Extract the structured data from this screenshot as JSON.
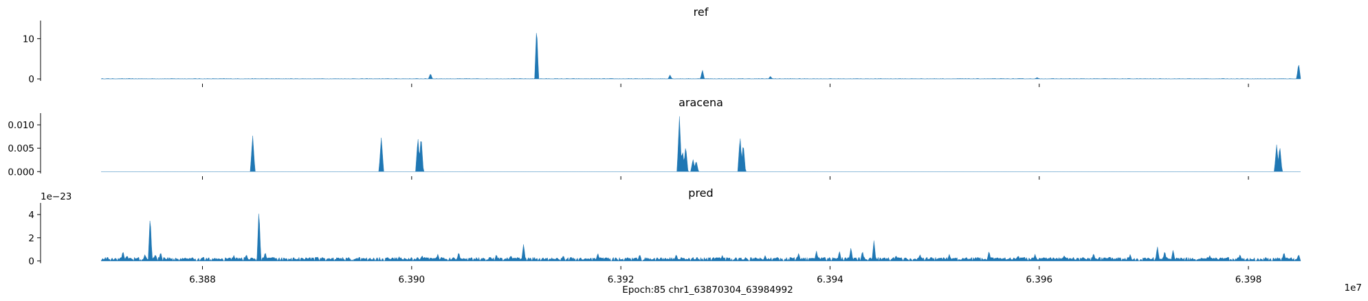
{
  "chart_data": [
    {
      "type": "area",
      "title": "ref",
      "color": "#1f77b4",
      "xlim": [
        63870304,
        63984992
      ],
      "ylim": [
        -0.5,
        14.5
      ],
      "yticks": [
        0,
        10
      ],
      "ytick_labels": [
        "0",
        "10"
      ],
      "peaks": [
        {
          "x": 63901800,
          "y": 1.4
        },
        {
          "x": 63911950,
          "y": 13.5
        },
        {
          "x": 63924700,
          "y": 1.0
        },
        {
          "x": 63927800,
          "y": 2.3
        },
        {
          "x": 63934300,
          "y": 0.7
        },
        {
          "x": 63959800,
          "y": 0.4
        },
        {
          "x": 63984800,
          "y": 4.0
        }
      ]
    },
    {
      "type": "area",
      "title": "aracena",
      "color": "#1f77b4",
      "xlim": [
        63870304,
        63984992
      ],
      "ylim": [
        -0.0004,
        0.0125
      ],
      "yticks": [
        0.0,
        0.005,
        0.01
      ],
      "ytick_labels": [
        "0.000",
        "0.005",
        "0.010"
      ],
      "peaks": [
        {
          "x": 63884800,
          "y": 0.0078
        },
        {
          "x": 63897100,
          "y": 0.0075
        },
        {
          "x": 63900600,
          "y": 0.0074
        },
        {
          "x": 63900900,
          "y": 0.0078
        },
        {
          "x": 63925600,
          "y": 0.0118
        },
        {
          "x": 63925900,
          "y": 0.0046
        },
        {
          "x": 63926200,
          "y": 0.0056
        },
        {
          "x": 63926900,
          "y": 0.0027
        },
        {
          "x": 63927200,
          "y": 0.0024
        },
        {
          "x": 63931400,
          "y": 0.0076
        },
        {
          "x": 63931700,
          "y": 0.0062
        },
        {
          "x": 63982700,
          "y": 0.0058
        },
        {
          "x": 63983000,
          "y": 0.0056
        }
      ]
    },
    {
      "type": "area",
      "title": "pred",
      "color": "#1f77b4",
      "xlim": [
        63870304,
        63984992
      ],
      "ylim": [
        -0.2,
        5.0
      ],
      "y_offset_label": "1e−23",
      "yticks": [
        0,
        2,
        4
      ],
      "ytick_labels": [
        "0",
        "2",
        "4"
      ],
      "baseline": 0.25,
      "peaks": [
        {
          "x": 63872400,
          "y": 0.9
        },
        {
          "x": 63872800,
          "y": 0.5
        },
        {
          "x": 63875000,
          "y": 4.0
        },
        {
          "x": 63874500,
          "y": 0.6
        },
        {
          "x": 63875500,
          "y": 0.6
        },
        {
          "x": 63876000,
          "y": 0.8
        },
        {
          "x": 63879000,
          "y": 0.3
        },
        {
          "x": 63883000,
          "y": 0.5
        },
        {
          "x": 63884200,
          "y": 0.6
        },
        {
          "x": 63885400,
          "y": 4.6
        },
        {
          "x": 63886000,
          "y": 0.8
        },
        {
          "x": 63891000,
          "y": 0.4
        },
        {
          "x": 63894000,
          "y": 0.3
        },
        {
          "x": 63898800,
          "y": 0.4
        },
        {
          "x": 63901000,
          "y": 0.5
        },
        {
          "x": 63902500,
          "y": 0.6
        },
        {
          "x": 63904500,
          "y": 0.8
        },
        {
          "x": 63908100,
          "y": 0.6
        },
        {
          "x": 63909500,
          "y": 0.5
        },
        {
          "x": 63910700,
          "y": 1.5
        },
        {
          "x": 63914500,
          "y": 0.5
        },
        {
          "x": 63917800,
          "y": 0.7
        },
        {
          "x": 63921800,
          "y": 0.6
        },
        {
          "x": 63925300,
          "y": 0.6
        },
        {
          "x": 63929700,
          "y": 0.5
        },
        {
          "x": 63933800,
          "y": 0.5
        },
        {
          "x": 63937000,
          "y": 0.7
        },
        {
          "x": 63938700,
          "y": 0.9
        },
        {
          "x": 63940900,
          "y": 0.9
        },
        {
          "x": 63942000,
          "y": 1.2
        },
        {
          "x": 63943100,
          "y": 0.9
        },
        {
          "x": 63944200,
          "y": 1.8
        },
        {
          "x": 63946300,
          "y": 0.5
        },
        {
          "x": 63948600,
          "y": 0.6
        },
        {
          "x": 63951400,
          "y": 0.6
        },
        {
          "x": 63955200,
          "y": 0.9
        },
        {
          "x": 63958000,
          "y": 0.5
        },
        {
          "x": 63959600,
          "y": 0.6
        },
        {
          "x": 63962400,
          "y": 0.5
        },
        {
          "x": 63965200,
          "y": 0.7
        },
        {
          "x": 63968700,
          "y": 0.6
        },
        {
          "x": 63971300,
          "y": 1.3
        },
        {
          "x": 63972000,
          "y": 0.9
        },
        {
          "x": 63972800,
          "y": 1.0
        },
        {
          "x": 63976300,
          "y": 0.5
        },
        {
          "x": 63979200,
          "y": 0.6
        },
        {
          "x": 63983400,
          "y": 0.8
        },
        {
          "x": 63984800,
          "y": 0.6
        }
      ],
      "xticks": [
        63880000,
        63900000,
        63920000,
        63940000,
        63960000,
        63980000
      ],
      "xtick_labels": [
        "6.388",
        "6.390",
        "6.392",
        "6.394",
        "6.396",
        "6.398"
      ],
      "x_offset_label": "1e7",
      "xlabel": "Epoch:85 chr1_63870304_63984992"
    }
  ]
}
